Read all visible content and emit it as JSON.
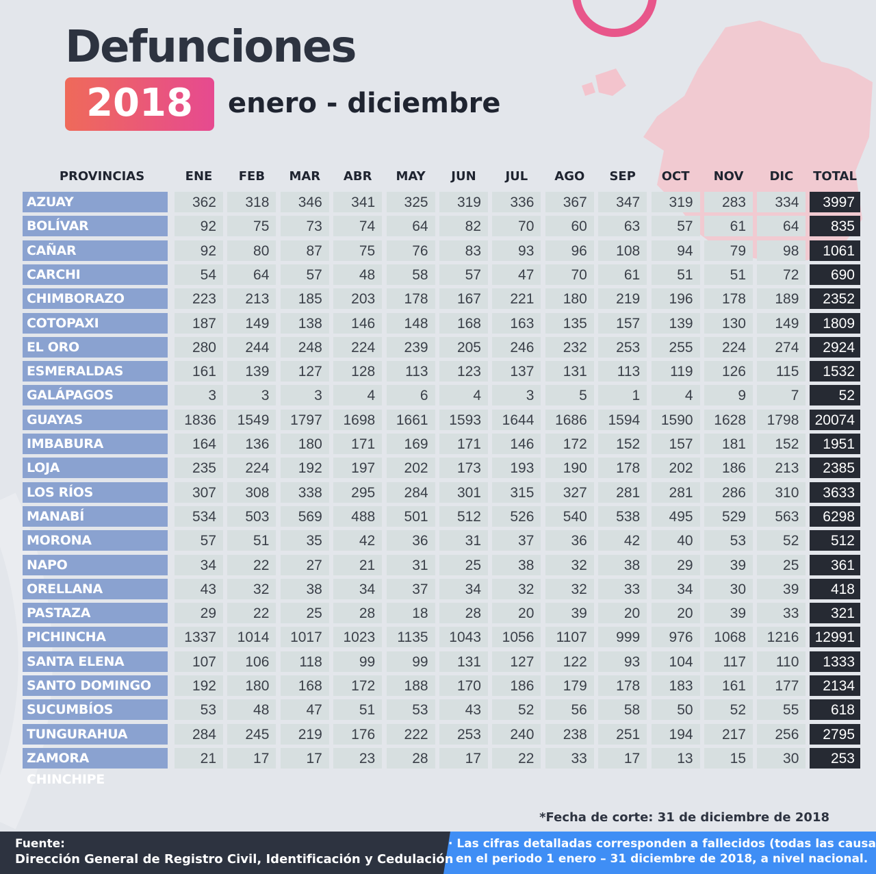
{
  "header": {
    "title": "Defunciones",
    "year": "2018",
    "period": "enero - diciembre"
  },
  "table": {
    "columns": [
      "PROVINCIAS",
      "ENE",
      "FEB",
      "MAR",
      "ABR",
      "MAY",
      "JUN",
      "JUL",
      "AGO",
      "SEP",
      "OCT",
      "NOV",
      "DIC",
      "TOTAL"
    ],
    "rows": [
      [
        "AZUAY",
        362,
        318,
        346,
        341,
        325,
        319,
        336,
        367,
        347,
        319,
        283,
        334,
        3997
      ],
      [
        "BOLÍVAR",
        92,
        75,
        73,
        74,
        64,
        82,
        70,
        60,
        63,
        57,
        61,
        64,
        835
      ],
      [
        "CAÑAR",
        92,
        80,
        87,
        75,
        76,
        83,
        93,
        96,
        108,
        94,
        79,
        98,
        1061
      ],
      [
        "CARCHI",
        54,
        64,
        57,
        48,
        58,
        57,
        47,
        70,
        61,
        51,
        51,
        72,
        690
      ],
      [
        "CHIMBORAZO",
        223,
        213,
        185,
        203,
        178,
        167,
        221,
        180,
        219,
        196,
        178,
        189,
        2352
      ],
      [
        "COTOPAXI",
        187,
        149,
        138,
        146,
        148,
        168,
        163,
        135,
        157,
        139,
        130,
        149,
        1809
      ],
      [
        "EL ORO",
        280,
        244,
        248,
        224,
        239,
        205,
        246,
        232,
        253,
        255,
        224,
        274,
        2924
      ],
      [
        "ESMERALDAS",
        161,
        139,
        127,
        128,
        113,
        123,
        137,
        131,
        113,
        119,
        126,
        115,
        1532
      ],
      [
        "GALÁPAGOS",
        3,
        3,
        3,
        4,
        6,
        4,
        3,
        5,
        1,
        4,
        9,
        7,
        52
      ],
      [
        "GUAYAS",
        1836,
        1549,
        1797,
        1698,
        1661,
        1593,
        1644,
        1686,
        1594,
        1590,
        1628,
        1798,
        20074
      ],
      [
        "IMBABURA",
        164,
        136,
        180,
        171,
        169,
        171,
        146,
        172,
        152,
        157,
        181,
        152,
        1951
      ],
      [
        "LOJA",
        235,
        224,
        192,
        197,
        202,
        173,
        193,
        190,
        178,
        202,
        186,
        213,
        2385
      ],
      [
        "LOS RÍOS",
        307,
        308,
        338,
        295,
        284,
        301,
        315,
        327,
        281,
        281,
        286,
        310,
        3633
      ],
      [
        "MANABÍ",
        534,
        503,
        569,
        488,
        501,
        512,
        526,
        540,
        538,
        495,
        529,
        563,
        6298
      ],
      [
        "MORONA SANTIAGO",
        57,
        51,
        35,
        42,
        36,
        31,
        37,
        36,
        42,
        40,
        53,
        52,
        512
      ],
      [
        "NAPO",
        34,
        22,
        27,
        21,
        31,
        25,
        38,
        32,
        38,
        29,
        39,
        25,
        361
      ],
      [
        "ORELLANA",
        43,
        32,
        38,
        34,
        37,
        34,
        32,
        32,
        33,
        34,
        30,
        39,
        418
      ],
      [
        "PASTAZA",
        29,
        22,
        25,
        28,
        18,
        28,
        20,
        39,
        20,
        20,
        39,
        33,
        321
      ],
      [
        "PICHINCHA",
        1337,
        1014,
        1017,
        1023,
        1135,
        1043,
        1056,
        1107,
        999,
        976,
        1068,
        1216,
        12991
      ],
      [
        "SANTA ELENA",
        107,
        106,
        118,
        99,
        99,
        131,
        127,
        122,
        93,
        104,
        117,
        110,
        1333
      ],
      [
        "SANTO DOMINGO",
        192,
        180,
        168,
        172,
        188,
        170,
        186,
        179,
        178,
        183,
        161,
        177,
        2134
      ],
      [
        "SUCUMBÍOS",
        53,
        48,
        47,
        51,
        53,
        43,
        52,
        56,
        58,
        50,
        52,
        55,
        618
      ],
      [
        "TUNGURAHUA",
        284,
        245,
        219,
        176,
        222,
        253,
        240,
        238,
        251,
        194,
        217,
        256,
        2795
      ],
      [
        "ZAMORA CHINCHIPE",
        21,
        17,
        17,
        23,
        28,
        17,
        22,
        33,
        17,
        13,
        15,
        30,
        253
      ]
    ]
  },
  "footnote": "*Fecha de corte: 31 de diciembre de 2018",
  "footer": {
    "source_label": "Fuente:",
    "source": "Dirección General de Registro Civil, Identificación y Cedulación",
    "note": [
      "· Las cifras detalladas corresponden a fallecidos (todas las causas)",
      "en el periodo 1 enero –  31  diciembre de 2018, a nivel nacional."
    ]
  }
}
